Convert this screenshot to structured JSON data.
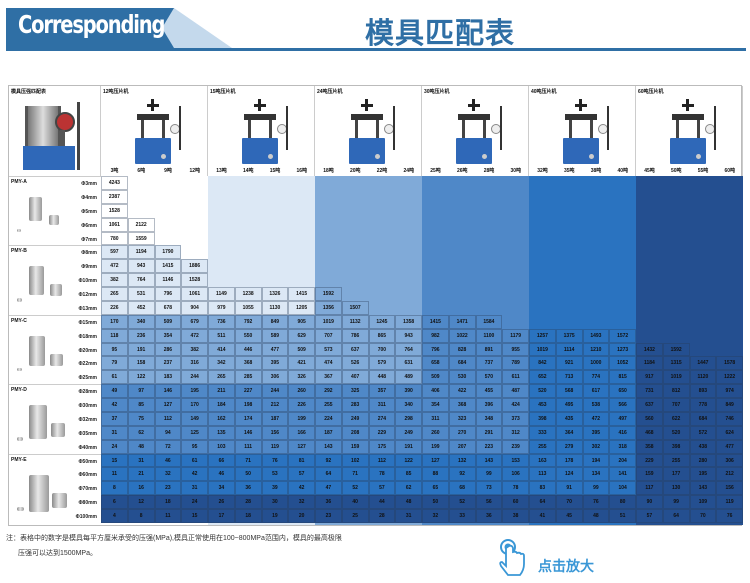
{
  "header": {
    "english_title": "Corresponding",
    "chinese_title": "模具匹配表"
  },
  "colors": {
    "brand": "#2f6fa5",
    "zoom_text": "#3a97d6",
    "band_levels": [
      "#ffffff",
      "#dce8f5",
      "#80aad8",
      "#4f88c8",
      "#2a73c0",
      "#244f90"
    ]
  },
  "table": {
    "corner_title": "模具压强匹配表",
    "machines": [
      {
        "label": "12吨压片机",
        "tonnages": [
          "3吨",
          "6吨",
          "9吨",
          "12吨"
        ]
      },
      {
        "label": "15吨压片机",
        "tonnages": [
          "13吨",
          "14吨",
          "15吨",
          "16吨"
        ]
      },
      {
        "label": "24吨压片机",
        "tonnages": [
          "18吨",
          "20吨",
          "22吨",
          "24吨"
        ]
      },
      {
        "label": "30吨压片机",
        "tonnages": [
          "25吨",
          "26吨",
          "28吨",
          "30吨"
        ]
      },
      {
        "label": "40吨压片机",
        "tonnages": [
          "32吨",
          "35吨",
          "38吨",
          "40吨"
        ]
      },
      {
        "label": "60吨压片机",
        "tonnages": [
          "45吨",
          "50吨",
          "55吨",
          "60吨"
        ]
      }
    ],
    "groups": [
      {
        "name": "PMY-A",
        "rows": [
          {
            "dia": "Φ3mm",
            "values": [
              4243
            ]
          },
          {
            "dia": "Φ4mm",
            "values": [
              2387
            ]
          },
          {
            "dia": "Φ5mm",
            "values": [
              1528
            ]
          },
          {
            "dia": "Φ6mm",
            "values": [
              1061,
              2122
            ]
          },
          {
            "dia": "Φ7mm",
            "values": [
              780,
              1559
            ]
          }
        ]
      },
      {
        "name": "PMY-B",
        "rows": [
          {
            "dia": "Φ8mm",
            "values": [
              597,
              1194,
              1790
            ]
          },
          {
            "dia": "Φ9mm",
            "values": [
              472,
              943,
              1415,
              1886
            ]
          },
          {
            "dia": "Φ10mm",
            "values": [
              382,
              764,
              1146,
              1528
            ]
          },
          {
            "dia": "Φ12mm",
            "values": [
              265,
              531,
              796,
              1061,
              1149,
              1238,
              1326,
              1415,
              1592
            ]
          },
          {
            "dia": "Φ13mm",
            "values": [
              226,
              452,
              678,
              904,
              979,
              1055,
              1130,
              1205,
              1356,
              1507
            ]
          }
        ]
      },
      {
        "name": "PMY-C",
        "rows": [
          {
            "dia": "Φ15mm",
            "values": [
              170,
              340,
              509,
              679,
              736,
              792,
              849,
              905,
              1019,
              1132,
              1245,
              1358,
              1415,
              1471,
              1584
            ]
          },
          {
            "dia": "Φ18mm",
            "values": [
              118,
              236,
              354,
              472,
              511,
              550,
              589,
              629,
              707,
              786,
              865,
              943,
              982,
              1022,
              1100,
              1179,
              1257,
              1375,
              1493,
              1572
            ]
          },
          {
            "dia": "Φ20mm",
            "values": [
              95,
              191,
              286,
              382,
              414,
              446,
              477,
              509,
              573,
              637,
              700,
              764,
              796,
              828,
              891,
              955,
              1019,
              1114,
              1210,
              1273,
              1432,
              1592
            ]
          },
          {
            "dia": "Φ22mm",
            "values": [
              79,
              158,
              237,
              316,
              342,
              368,
              395,
              421,
              474,
              526,
              579,
              631,
              658,
              684,
              737,
              789,
              842,
              921,
              1000,
              1052,
              1184,
              1315,
              1447,
              1578
            ]
          },
          {
            "dia": "Φ25mm",
            "values": [
              61,
              122,
              183,
              244,
              265,
              285,
              306,
              326,
              367,
              407,
              448,
              489,
              509,
              530,
              570,
              611,
              652,
              713,
              774,
              815,
              917,
              1019,
              1120,
              1222
            ]
          }
        ]
      },
      {
        "name": "PMY-D",
        "rows": [
          {
            "dia": "Φ28mm",
            "values": [
              49,
              97,
              146,
              195,
              211,
              227,
              244,
              260,
              292,
              325,
              357,
              390,
              406,
              422,
              455,
              487,
              520,
              568,
              617,
              650,
              731,
              812,
              893,
              974
            ]
          },
          {
            "dia": "Φ30mm",
            "values": [
              42,
              85,
              127,
              170,
              184,
              198,
              212,
              226,
              255,
              283,
              311,
              340,
              354,
              368,
              396,
              424,
              453,
              495,
              538,
              566,
              637,
              707,
              778,
              849
            ]
          },
          {
            "dia": "Φ32mm",
            "values": [
              37,
              75,
              112,
              149,
              162,
              174,
              187,
              199,
              224,
              249,
              274,
              298,
              311,
              323,
              348,
              373,
              398,
              435,
              472,
              497,
              560,
              622,
              684,
              746
            ]
          },
          {
            "dia": "Φ35mm",
            "values": [
              31,
              62,
              94,
              125,
              135,
              146,
              156,
              166,
              187,
              208,
              229,
              249,
              260,
              270,
              291,
              312,
              333,
              364,
              395,
              416,
              468,
              520,
              572,
              624
            ]
          },
          {
            "dia": "Φ40mm",
            "values": [
              24,
              48,
              72,
              95,
              103,
              111,
              119,
              127,
              143,
              159,
              175,
              191,
              199,
              207,
              223,
              239,
              255,
              279,
              302,
              318,
              358,
              398,
              438,
              477
            ]
          }
        ]
      },
      {
        "name": "PMY-E",
        "rows": [
          {
            "dia": "Φ50mm",
            "values": [
              15,
              31,
              46,
              61,
              66,
              71,
              76,
              81,
              92,
              102,
              112,
              122,
              127,
              132,
              143,
              153,
              163,
              178,
              194,
              204,
              229,
              255,
              280,
              306
            ]
          },
          {
            "dia": "Φ60mm",
            "values": [
              11,
              21,
              32,
              42,
              46,
              50,
              53,
              57,
              64,
              71,
              78,
              85,
              88,
              92,
              99,
              106,
              113,
              124,
              134,
              141,
              159,
              177,
              195,
              212
            ]
          },
          {
            "dia": "Φ70mm",
            "values": [
              8,
              16,
              23,
              31,
              34,
              36,
              39,
              42,
              47,
              52,
              57,
              62,
              65,
              68,
              73,
              78,
              83,
              91,
              99,
              104,
              117,
              130,
              143,
              156
            ]
          },
          {
            "dia": "Φ80mm",
            "values": [
              6,
              12,
              18,
              24,
              26,
              28,
              30,
              32,
              36,
              40,
              44,
              48,
              50,
              52,
              56,
              60,
              64,
              70,
              76,
              80,
              90,
              99,
              109,
              119
            ]
          },
          {
            "dia": "Φ100mm",
            "values": [
              4,
              8,
              11,
              15,
              17,
              18,
              19,
              20,
              23,
              25,
              28,
              31,
              32,
              33,
              36,
              38,
              41,
              45,
              48,
              51,
              57,
              64,
              70,
              76
            ]
          }
        ]
      }
    ]
  },
  "footer": {
    "note_line1": "注：表格中的数字是模具每平方厘米承受的压强(MPa),模具正常使用在100~800MPa范围内，模具的最高极限",
    "note_line2": "压强可以达到1500MPa。",
    "zoom_label": "点击放大",
    "zoom_icon": "hand-tap-icon"
  }
}
